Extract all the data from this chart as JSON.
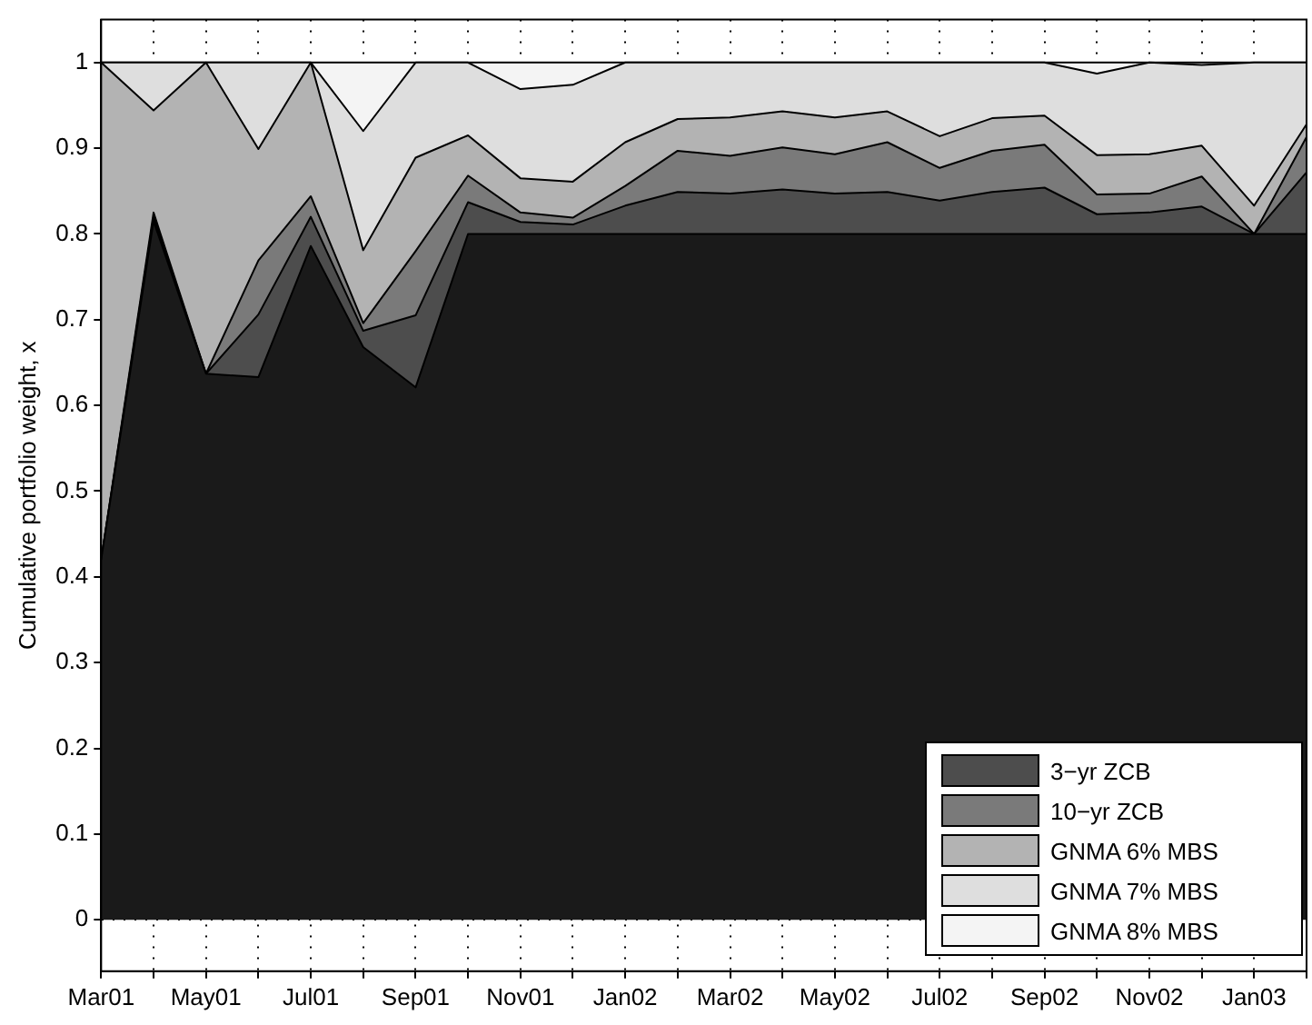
{
  "chart_data": {
    "type": "area",
    "ylabel": "Cumulative portfolio weight, x",
    "stacked": true,
    "grid": true,
    "legend": "bottom right",
    "categories": [
      "Mar01",
      null,
      "May01",
      null,
      "Jul01",
      null,
      "Sep01",
      null,
      "Nov01",
      null,
      "Jan02",
      null,
      "Mar02",
      null,
      "May02",
      null,
      "Jul02",
      null,
      "Sep02",
      null,
      "Nov02",
      null,
      "Jan03",
      null
    ],
    "ylim": [
      -0.06,
      1.05
    ],
    "yticks": [
      0,
      0.1,
      0.2,
      0.3,
      0.4,
      0.5,
      0.6,
      0.7,
      0.8,
      0.9,
      1
    ],
    "series": [
      {
        "color": "#1a1a1a",
        "values": [
          0.42,
          0.815,
          0.637,
          0.633,
          0.786,
          0.668,
          0.621,
          0.8,
          0.8,
          0.8,
          0.8,
          0.8,
          0.8,
          0.8,
          0.8,
          0.8,
          0.8,
          0.8,
          0.8,
          0.8,
          0.8,
          0.8,
          0.8,
          0.8
        ]
      },
      {
        "name": "3−yr ZCB",
        "color": "#4d4d4d",
        "values": [
          0,
          0.005,
          0,
          0.073,
          0.034,
          0.019,
          0.084,
          0.037,
          0.014,
          0.011,
          0.033,
          0.049,
          0.047,
          0.052,
          0.047,
          0.049,
          0.039,
          0.049,
          0.054,
          0.023,
          0.025,
          0.032,
          0,
          0.072
        ]
      },
      {
        "name": "10−yr ZCB",
        "color": "#7a7a7a",
        "values": [
          0,
          0.005,
          0,
          0.063,
          0.024,
          0.009,
          0.075,
          0.031,
          0.011,
          0.008,
          0.023,
          0.048,
          0.044,
          0.049,
          0.046,
          0.058,
          0.038,
          0.048,
          0.05,
          0.023,
          0.022,
          0.035,
          0,
          0.041
        ]
      },
      {
        "name": "GNMA 6% MBS",
        "color": "#b3b3b3",
        "values": [
          0.58,
          0.119,
          0.363,
          0.13,
          0.156,
          0.085,
          0.109,
          0.047,
          0.04,
          0.042,
          0.051,
          0.037,
          0.045,
          0.042,
          0.043,
          0.036,
          0.037,
          0.038,
          0.034,
          0.046,
          0.046,
          0.036,
          0.033,
          0.015
        ]
      },
      {
        "name": "GNMA 7% MBS",
        "color": "#dedede",
        "values": [
          0,
          0.056,
          0,
          0.101,
          0,
          0.139,
          0.111,
          0.085,
          0.104,
          0.113,
          0.093,
          0.066,
          0.064,
          0.057,
          0.064,
          0.057,
          0.086,
          0.065,
          0.062,
          0.095,
          0.107,
          0.094,
          0.167,
          0.072
        ]
      },
      {
        "name": "GNMA 8% MBS",
        "color": "#f4f4f4",
        "values": [
          0,
          0,
          0,
          0,
          0,
          0.08,
          0,
          0,
          0.031,
          0.026,
          0,
          0,
          0,
          0,
          0,
          0,
          0,
          0,
          0,
          0.013,
          0,
          0.003,
          0,
          0
        ]
      }
    ]
  }
}
